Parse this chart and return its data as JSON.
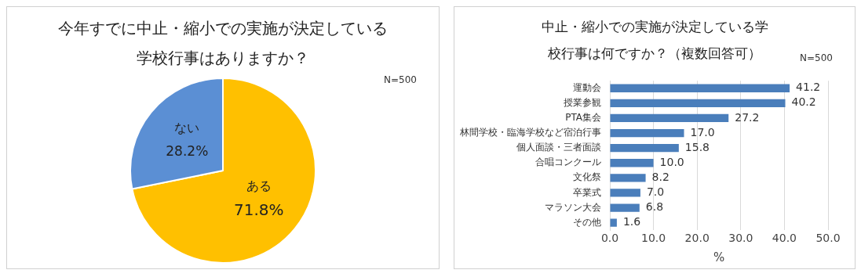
{
  "chart_data": [
    {
      "type": "pie",
      "title": "今年すでに中止・縮小での実施が決定している学校行事はありますか？",
      "categories": [
        "ある",
        "ない"
      ],
      "values": [
        71.8,
        28.2
      ],
      "colors": [
        "#ffc000",
        "#5b8fd4"
      ],
      "value_labels": [
        "71.8%",
        "28.2%"
      ],
      "annotations": [
        "N=500"
      ]
    },
    {
      "type": "bar",
      "orientation": "horizontal",
      "title": "中止・縮小での実施が決定している学校行事は何ですか？（複数回答可）",
      "categories": [
        "運動会",
        "授業参観",
        "PTA集会",
        "林間学校・臨海学校など宿泊行事",
        "個人面談・三者面談",
        "合唱コンクール",
        "文化祭",
        "卒業式",
        "マラソン大会",
        "その他"
      ],
      "values": [
        41.2,
        40.2,
        27.2,
        17.0,
        15.8,
        10.0,
        8.2,
        7.0,
        6.8,
        1.6
      ],
      "color": "#4a7ebb",
      "value_labels": [
        "41.2",
        "40.2",
        "27.2",
        "17.0",
        "15.8",
        "10.0",
        "8.2",
        "7.0",
        "6.8",
        "1.6"
      ],
      "xlim": [
        0,
        50
      ],
      "xticks": [
        {
          "value": 0,
          "label": "0.0"
        },
        {
          "value": 10,
          "label": "10.0"
        },
        {
          "value": 20,
          "label": "20.0"
        },
        {
          "value": 30,
          "label": "30.0"
        },
        {
          "value": 40,
          "label": "40.0"
        },
        {
          "value": 50,
          "label": "50.0"
        }
      ],
      "xlabel": "%",
      "grid": "x",
      "annotations": [
        "N=500"
      ]
    }
  ]
}
